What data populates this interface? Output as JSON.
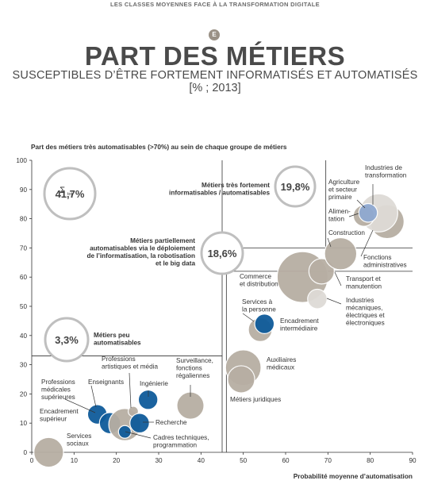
{
  "header": {
    "band_text": "LES CLASSES MOYENNES FACE À LA TRANSFORMATION DIGITALE",
    "badge": "E",
    "title": "PART DES MÉTIERS",
    "subtitle": "SUSCEPTIBLES D’ÊTRE FORTEMENT INFORMATISÉS ET AUTOMATISÉS",
    "unit": "[% ; 2013]"
  },
  "colors": {
    "grey_bubble": "#b7aea3",
    "blue_bubble": "#0f5b9a",
    "light_blue_bubble": "#8fa9d1",
    "light_bubble": "#dedbd6",
    "lines": "#333333",
    "summary_circle": "#bfbfbf"
  },
  "chart_data": {
    "type": "scatter",
    "title": "",
    "ylabel": "Part des métiers très automatisables (>70%) au sein de chaque groupe de métiers",
    "xlabel": "Probabilité moyenne d’automatisation",
    "xlim": [
      0,
      90
    ],
    "ylim": [
      0,
      100
    ],
    "xticks": [
      0,
      10,
      20,
      30,
      40,
      50,
      60,
      70,
      80,
      90
    ],
    "yticks": [
      0,
      10,
      20,
      30,
      40,
      50,
      60,
      70,
      80,
      90,
      100
    ],
    "thresholds": {
      "x": 45,
      "y_high": 70,
      "y_low": 33
    },
    "points": [
      {
        "name": "Services sociaux",
        "x": 4,
        "y": 0,
        "r": 3.5,
        "color": "grey"
      },
      {
        "name": "Professions médicales supérieures",
        "x": 15.5,
        "y": 13,
        "r": 2.3,
        "color": "blue"
      },
      {
        "name": "Enseignants",
        "x": 18.5,
        "y": 10,
        "r": 2.5,
        "color": "blue"
      },
      {
        "name": "Encadrement supérieur",
        "x": 22,
        "y": 9.5,
        "r": 3.8,
        "color": "grey"
      },
      {
        "name": "Professions artistiques et média",
        "x": 24,
        "y": 14,
        "r": 1.2,
        "color": "grey"
      },
      {
        "name": "Cadres techniques, programmation",
        "x": 22,
        "y": 7,
        "r": 1.5,
        "color": "blue"
      },
      {
        "name": "Recherche",
        "x": 25.5,
        "y": 10,
        "r": 2.3,
        "color": "blue"
      },
      {
        "name": "Ingénierie",
        "x": 27.5,
        "y": 18,
        "r": 2.3,
        "color": "blue"
      },
      {
        "name": "Surveillance, fonctions régaliennes",
        "x": 37.5,
        "y": 16,
        "r": 3.2,
        "color": "grey"
      },
      {
        "name": "Auxiliaires médicaux",
        "x": 50,
        "y": 29,
        "r": 4.2,
        "color": "grey"
      },
      {
        "name": "Métiers juridiques",
        "x": 49.5,
        "y": 25,
        "r": 3.2,
        "color": "grey"
      },
      {
        "name": "Services à la personne",
        "x": 54,
        "y": 42,
        "r": 2.8,
        "color": "grey"
      },
      {
        "name": "Encadrement intermédiaire",
        "x": 55,
        "y": 44,
        "r": 2.3,
        "color": "blue"
      },
      {
        "name": "Commerce et distribution",
        "x": 64,
        "y": 60,
        "r": 6,
        "color": "grey"
      },
      {
        "name": "Transport et manutention",
        "x": 68.5,
        "y": 62,
        "r": 3,
        "color": "grey"
      },
      {
        "name": "Industries mécaniques, électriques et électroniques",
        "x": 67.5,
        "y": 52.5,
        "r": 2.3,
        "color": "light"
      },
      {
        "name": "Construction",
        "x": 73,
        "y": 68,
        "r": 3.8,
        "color": "grey"
      },
      {
        "name": "Fonctions administratives",
        "x": 84,
        "y": 79,
        "r": 4,
        "color": "grey"
      },
      {
        "name": "Industries de transformation",
        "x": 82,
        "y": 82,
        "r": 4.5,
        "color": "light"
      },
      {
        "name": "Alimentation",
        "x": 78.5,
        "y": 81,
        "r": 2.5,
        "color": "grey"
      },
      {
        "name": "Agriculture et secteur primaire",
        "x": 79.5,
        "y": 82,
        "r": 2.2,
        "color": "lightblue"
      }
    ],
    "summaries": [
      {
        "label": "Métiers très fortement informatisables / automatisables",
        "value": "19,8%"
      },
      {
        "label": "Métiers partiellement automatisables via le déploiement de l’informatisation, la robotisation et le big data",
        "value": "18,6%"
      },
      {
        "label": "Métiers peu automatisables",
        "value": "3,3%"
      },
      {
        "label": "tot",
        "value": "41,7%"
      }
    ]
  },
  "annotations": {
    "services_sociaux": [
      "Services",
      "sociaux"
    ],
    "prof_med": [
      "Professions",
      "médicales",
      "supérieures"
    ],
    "enseignants": [
      "Enseignants"
    ],
    "encadrement_sup": [
      "Encadrement",
      "supérieur"
    ],
    "prof_art": [
      "Professions",
      "artistiques et média"
    ],
    "cadres_tech": [
      "Cadres techniques,",
      "programmation"
    ],
    "recherche": [
      "Recherche"
    ],
    "ingenierie": [
      "Ingénierie"
    ],
    "surveillance": [
      "Surveillance,",
      "fonctions",
      "régaliennes"
    ],
    "aux_med": [
      "Auxiliaires",
      "médicaux"
    ],
    "met_jur": [
      "Métiers juridiques"
    ],
    "serv_pers": [
      "Services à",
      "la personne"
    ],
    "encad_inter": [
      "Encadrement",
      "intermédiaire"
    ],
    "commerce": [
      "Commerce",
      "et distribution"
    ],
    "transport": [
      "Transport et",
      "manutention"
    ],
    "ind_meca": [
      "Industries",
      "mécaniques,",
      "électriques et",
      "électroniques"
    ],
    "construction": [
      "Construction"
    ],
    "fonctions_adm": [
      "Fonctions",
      "administratives"
    ],
    "ind_transfo": [
      "Industries de",
      "transformation"
    ],
    "alimentation": [
      "Alimen-",
      "tation"
    ],
    "agriculture": [
      "Agriculture",
      "et secteur",
      "primaire"
    ],
    "tres_fort": [
      "Métiers très fortement",
      "informatisables / automatisables"
    ],
    "partiel": [
      "Métiers partiellement",
      "automatisables via le déploiement",
      "de l’informatisation, la robotisation",
      "et le big data"
    ],
    "peu": [
      "Métiers peu",
      "automatisables"
    ],
    "sigma": "Σ"
  }
}
